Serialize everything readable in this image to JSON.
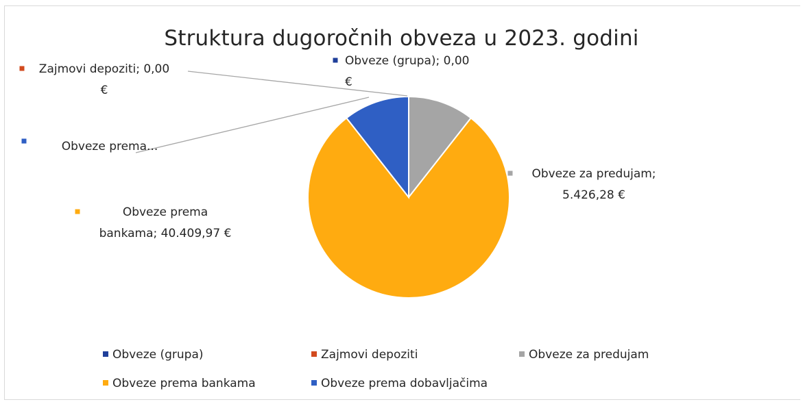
{
  "chart_data": {
    "type": "pie",
    "title": "Struktura dugoročnih obveza u 2023. godini",
    "currency": "€",
    "slices": [
      {
        "name": "Obveze (grupa)",
        "value": 0.0,
        "color": "#1f3f9a",
        "label_lines": [
          "Obveze (grupa); 0,00",
          "€"
        ]
      },
      {
        "name": "Zajmovi depoziti",
        "value": 0.0,
        "color": "#d24a1e",
        "label_lines": [
          "Zajmovi depoziti; 0,00",
          "€"
        ]
      },
      {
        "name": "Obveze za predujam",
        "value": 5426.28,
        "color": "#a5a5a5",
        "label_lines": [
          "Obveze za predujam;",
          "5.426,28 €"
        ]
      },
      {
        "name": "Obveze prema bankama",
        "value": 40409.97,
        "color": "#ffab10",
        "label_lines": [
          "Obveze prema",
          "bankama; 40.409,97 €"
        ]
      },
      {
        "name": "Obveze prema dobavljačima",
        "value": 5426.28,
        "color": "#2f5fc4",
        "label_lines": [
          "Obveze prema..."
        ]
      }
    ],
    "legend": {
      "placement": "bottom",
      "entries": [
        "Obveze (grupa)",
        "Zajmovi depoziti",
        "Obveze za predujam",
        "Obveze prema bankama",
        "Obveze prema dobavljačima"
      ]
    }
  }
}
